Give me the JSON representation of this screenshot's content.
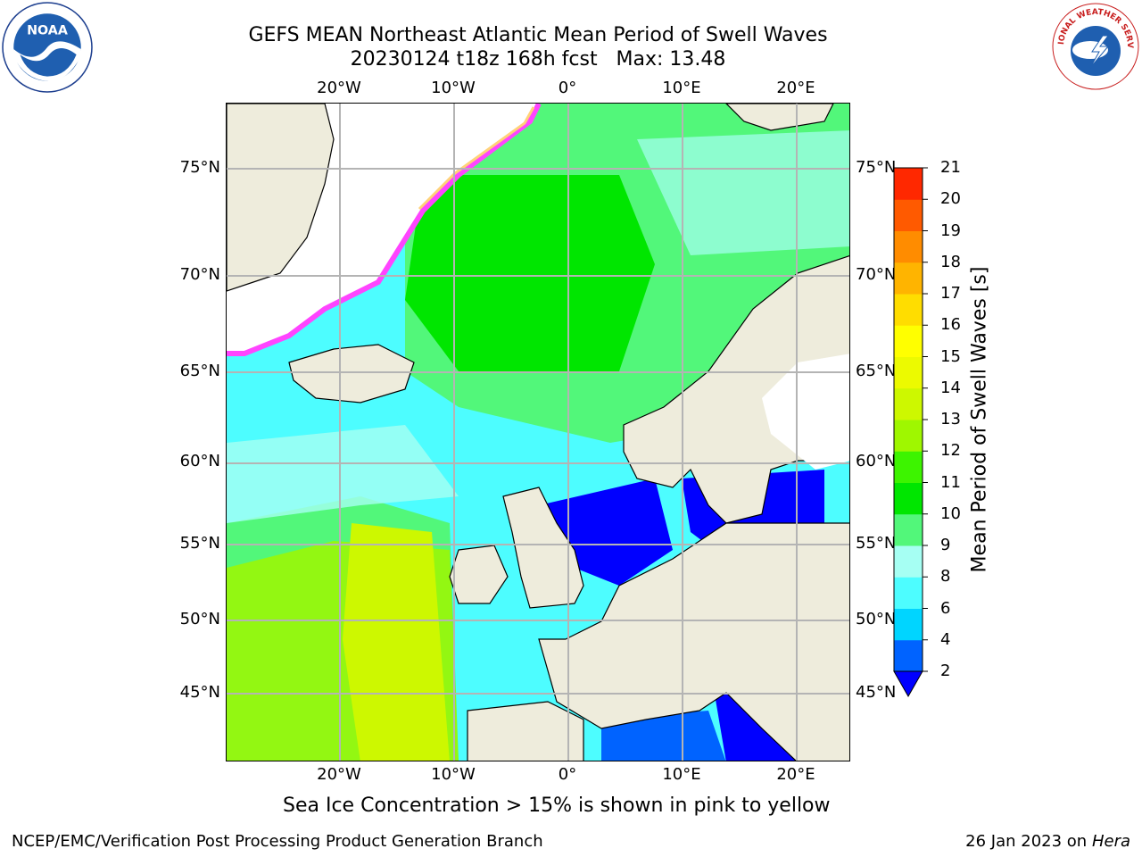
{
  "title": {
    "line1": "GEFS MEAN Northeast Atlantic Mean Period of Swell Waves",
    "line2": "20230124 t18z 168h fcst   Max: 13.48"
  },
  "map": {
    "lon_labels": [
      "20°W",
      "10°W",
      "0°",
      "10°E",
      "20°E"
    ],
    "lat_labels": [
      "75°N",
      "70°N",
      "65°N",
      "60°N",
      "55°N",
      "50°N",
      "45°N"
    ]
  },
  "colorbar": {
    "label": "Mean Period of Swell Waves [s]",
    "ticks": [
      "2",
      "4",
      "6",
      "8",
      "9",
      "10",
      "11",
      "12",
      "13",
      "14",
      "15",
      "16",
      "17",
      "18",
      "19",
      "20",
      "21"
    ],
    "colors": [
      "#0063ff",
      "#00d5ff",
      "#4dfdff",
      "#a6fff3",
      "#52f77a",
      "#00e600",
      "#3df400",
      "#9ff700",
      "#cdf800",
      "#ecfa00",
      "#ffff00",
      "#ffdd00",
      "#ffb400",
      "#ff8c00",
      "#ff5a00",
      "#ff2800"
    ],
    "under_color": "#0000ff"
  },
  "caption": "Sea Ice Concentration > 15% is shown in pink to yellow",
  "footer": {
    "left": "NCEP/EMC/Verification Post Processing Product Generation Branch",
    "right_date": "26 Jan 2023 on ",
    "right_host": "Hera"
  },
  "logos": {
    "noaa_text": "NOAA",
    "nws_text": "NATIONAL WEATHER SERVICE"
  }
}
